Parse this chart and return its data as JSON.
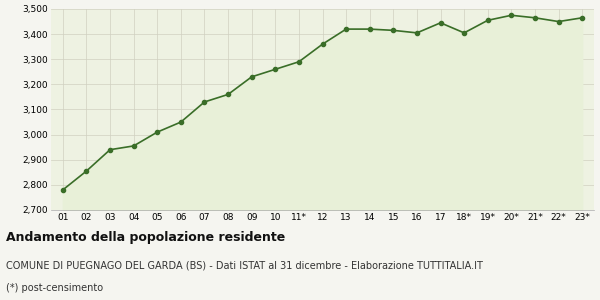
{
  "x_labels": [
    "01",
    "02",
    "03",
    "04",
    "05",
    "06",
    "07",
    "08",
    "09",
    "10",
    "11*",
    "12",
    "13",
    "14",
    "15",
    "16",
    "17",
    "18*",
    "19*",
    "20*",
    "21*",
    "22*",
    "23*"
  ],
  "y_values": [
    2780,
    2855,
    2940,
    2955,
    3010,
    3050,
    3130,
    3160,
    3230,
    3260,
    3290,
    3360,
    3420,
    3420,
    3415,
    3405,
    3445,
    3405,
    3455,
    3475,
    3465,
    3450,
    3465
  ],
  "ylim": [
    2700,
    3500
  ],
  "yticks": [
    2700,
    2800,
    2900,
    3000,
    3100,
    3200,
    3300,
    3400,
    3500
  ],
  "line_color": "#3a6e28",
  "fill_color": "#e8f0d8",
  "marker_color": "#3a6e28",
  "bg_color": "#eef2e2",
  "fig_color": "#f5f5f0",
  "grid_color": "#d0d0c0",
  "title1": "Andamento della popolazione residente",
  "title2": "COMUNE DI PUEGNAGO DEL GARDA (BS) - Dati ISTAT al 31 dicembre - Elaborazione TUTTITALIA.IT",
  "title3": "(*) post-censimento",
  "title1_fontsize": 9,
  "title2_fontsize": 7,
  "title3_fontsize": 7
}
